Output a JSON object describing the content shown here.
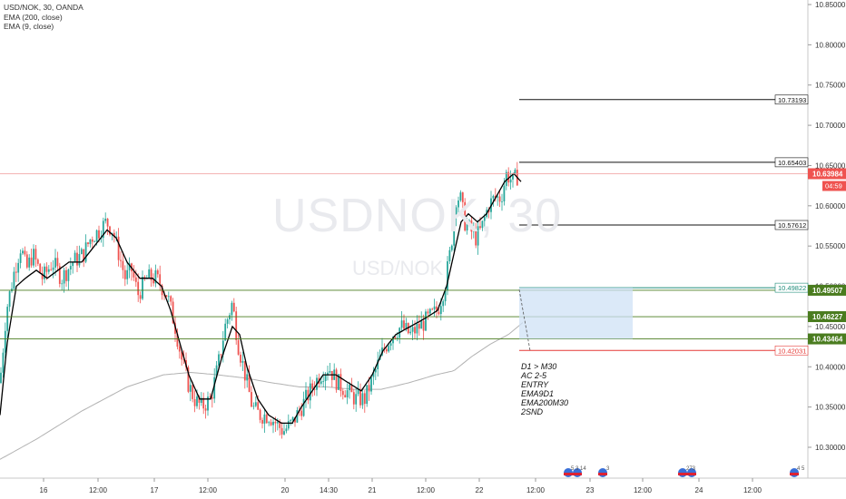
{
  "legend": {
    "title": "USD/NOK, 30, OANDA",
    "ema200": "EMA (200, close)",
    "ema9": "EMA (9, close)"
  },
  "watermark": {
    "main": "USDNOK, 30",
    "sub": "USD/NOK"
  },
  "colors": {
    "up": "#26a69a",
    "down": "#ef5350",
    "ema9": "#000000",
    "ema200": "#b2b2b2",
    "green_level": "#4a7c1f",
    "red_level": "#e53935",
    "price_line": "#f09a9a",
    "zone_fill": "#cfe2f5"
  },
  "chart_data": {
    "type": "candlestick",
    "symbol": "USD/NOK",
    "timeframe": "30",
    "source": "OANDA",
    "ylim": [
      10.255,
      10.855
    ],
    "y_ticks": [
      "10.30000",
      "10.35000",
      "10.40000",
      "10.45000",
      "10.50000",
      "10.55000",
      "10.60000",
      "10.65000",
      "10.70000",
      "10.75000",
      "10.80000",
      "10.85000"
    ],
    "x_ticks": [
      "16",
      "12:00",
      "17",
      "12:00",
      "20",
      "14:30",
      "21",
      "12:00",
      "22",
      "12:00",
      "23",
      "12:00",
      "24",
      "12:00"
    ],
    "current_price": "10.63984",
    "countdown": "04:59",
    "horizontal_levels": [
      {
        "value": 10.73193,
        "label": "10.73193",
        "style": "line-black"
      },
      {
        "value": 10.65403,
        "label": "10.65403",
        "style": "line-black"
      },
      {
        "value": 10.57612,
        "label": "10.57612",
        "style": "line-black"
      },
      {
        "value": 10.49822,
        "label": "10.49822",
        "style": "outline-teal"
      },
      {
        "value": 10.42031,
        "label": "10.42031",
        "style": "outline-red"
      },
      {
        "value": 10.49507,
        "label": "10.49507",
        "style": "badge-green"
      },
      {
        "value": 10.46227,
        "label": "10.46227",
        "style": "badge-green"
      },
      {
        "value": 10.43464,
        "label": "10.43464",
        "style": "badge-green"
      }
    ],
    "price_anchors": [
      [
        0,
        10.38
      ],
      [
        7,
        10.47
      ],
      [
        16,
        10.52
      ],
      [
        23,
        10.55
      ],
      [
        29,
        10.52
      ],
      [
        36,
        10.54
      ],
      [
        47,
        10.51
      ],
      [
        58,
        10.53
      ],
      [
        68,
        10.51
      ],
      [
        80,
        10.53
      ],
      [
        92,
        10.54
      ],
      [
        100,
        10.56
      ],
      [
        110,
        10.57
      ],
      [
        117,
        10.58
      ],
      [
        124,
        10.57
      ],
      [
        131,
        10.54
      ],
      [
        138,
        10.51
      ],
      [
        145,
        10.52
      ],
      [
        152,
        10.49
      ],
      [
        162,
        10.51
      ],
      [
        172,
        10.51
      ],
      [
        184,
        10.49
      ],
      [
        193,
        10.45
      ],
      [
        200,
        10.41
      ],
      [
        207,
        10.38
      ],
      [
        214,
        10.36
      ],
      [
        222,
        10.35
      ],
      [
        232,
        10.36
      ],
      [
        240,
        10.4
      ],
      [
        248,
        10.45
      ],
      [
        256,
        10.48
      ],
      [
        262,
        10.43
      ],
      [
        270,
        10.39
      ],
      [
        278,
        10.35
      ],
      [
        286,
        10.34
      ],
      [
        296,
        10.34
      ],
      [
        304,
        10.33
      ],
      [
        312,
        10.32
      ],
      [
        322,
        10.33
      ],
      [
        332,
        10.35
      ],
      [
        342,
        10.37
      ],
      [
        352,
        10.39
      ],
      [
        362,
        10.4
      ],
      [
        372,
        10.38
      ],
      [
        382,
        10.37
      ],
      [
        392,
        10.36
      ],
      [
        402,
        10.36
      ],
      [
        412,
        10.39
      ],
      [
        422,
        10.42
      ],
      [
        432,
        10.44
      ],
      [
        442,
        10.45
      ],
      [
        452,
        10.44
      ],
      [
        462,
        10.45
      ],
      [
        472,
        10.46
      ],
      [
        482,
        10.47
      ],
      [
        490,
        10.5
      ],
      [
        497,
        10.55
      ],
      [
        502,
        10.61
      ],
      [
        507,
        10.61
      ],
      [
        512,
        10.58
      ],
      [
        518,
        10.57
      ],
      [
        524,
        10.56
      ],
      [
        530,
        10.57
      ],
      [
        538,
        10.6
      ],
      [
        545,
        10.61
      ],
      [
        552,
        10.61
      ],
      [
        558,
        10.64
      ],
      [
        565,
        10.63
      ],
      [
        572,
        10.64
      ]
    ],
    "ema9_anchors": [
      [
        0,
        10.34
      ],
      [
        8,
        10.43
      ],
      [
        18,
        10.5
      ],
      [
        28,
        10.51
      ],
      [
        40,
        10.52
      ],
      [
        52,
        10.51
      ],
      [
        64,
        10.52
      ],
      [
        76,
        10.53
      ],
      [
        90,
        10.53
      ],
      [
        104,
        10.55
      ],
      [
        118,
        10.57
      ],
      [
        128,
        10.56
      ],
      [
        140,
        10.53
      ],
      [
        154,
        10.51
      ],
      [
        168,
        10.51
      ],
      [
        178,
        10.5
      ],
      [
        188,
        10.47
      ],
      [
        198,
        10.43
      ],
      [
        208,
        10.39
      ],
      [
        220,
        10.36
      ],
      [
        232,
        10.36
      ],
      [
        244,
        10.41
      ],
      [
        256,
        10.45
      ],
      [
        264,
        10.44
      ],
      [
        272,
        10.4
      ],
      [
        284,
        10.36
      ],
      [
        296,
        10.34
      ],
      [
        310,
        10.33
      ],
      [
        322,
        10.33
      ],
      [
        332,
        10.35
      ],
      [
        344,
        10.37
      ],
      [
        356,
        10.39
      ],
      [
        370,
        10.39
      ],
      [
        384,
        10.38
      ],
      [
        398,
        10.37
      ],
      [
        410,
        10.39
      ],
      [
        422,
        10.42
      ],
      [
        436,
        10.44
      ],
      [
        452,
        10.45
      ],
      [
        468,
        10.46
      ],
      [
        482,
        10.47
      ],
      [
        492,
        10.5
      ],
      [
        500,
        10.54
      ],
      [
        508,
        10.58
      ],
      [
        516,
        10.59
      ],
      [
        526,
        10.58
      ],
      [
        536,
        10.59
      ],
      [
        546,
        10.61
      ],
      [
        556,
        10.63
      ],
      [
        566,
        10.64
      ],
      [
        574,
        10.63
      ]
    ],
    "ema200_anchors": [
      [
        0,
        10.285
      ],
      [
        40,
        10.31
      ],
      [
        90,
        10.345
      ],
      [
        140,
        10.375
      ],
      [
        180,
        10.39
      ],
      [
        210,
        10.393
      ],
      [
        240,
        10.39
      ],
      [
        270,
        10.386
      ],
      [
        300,
        10.38
      ],
      [
        330,
        10.375
      ],
      [
        360,
        10.375
      ],
      [
        390,
        10.372
      ],
      [
        420,
        10.372
      ],
      [
        450,
        10.38
      ],
      [
        480,
        10.39
      ],
      [
        500,
        10.395
      ],
      [
        520,
        10.413
      ],
      [
        540,
        10.428
      ],
      [
        560,
        10.44
      ],
      [
        576,
        10.455
      ]
    ],
    "event_markers": [
      "5",
      "3",
      "14",
      "3",
      "2",
      "73",
      "4",
      "5"
    ]
  },
  "notes": [
    "D1 > M30",
    "AC 2-5",
    "",
    "ENTRY",
    "EMA9D1",
    "EMA200M30",
    "2SND"
  ]
}
